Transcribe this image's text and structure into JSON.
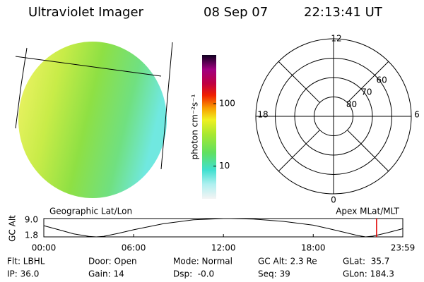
{
  "header": {
    "instrument": "Ultraviolet Imager",
    "date": "08 Sep 07",
    "time": "22:13:41 UT"
  },
  "colorbar": {
    "label": "photon cm⁻²s⁻¹",
    "scale": "log",
    "lim": [
      3,
      600
    ],
    "ticks": [
      10,
      100
    ]
  },
  "polar": {
    "lat_lim": [
      50,
      90
    ],
    "rings": [
      60,
      70,
      80
    ],
    "mlt_labels": [
      12,
      6,
      0,
      18
    ]
  },
  "altitude_panel": {
    "left_label": "Geographic Lat/Lon",
    "right_label": "Apex MLat/MLT",
    "ylabel": "GC Alt",
    "ylim": [
      1.8,
      9.0
    ],
    "yticks": [
      {
        "value": 9.0,
        "label": "9.0"
      },
      {
        "value": 1.8,
        "label": "1.8"
      }
    ],
    "xlim": [
      0,
      23.983
    ],
    "xticks": [
      {
        "value": 0,
        "label": "00:00"
      },
      {
        "value": 6,
        "label": "06:00"
      },
      {
        "value": 12,
        "label": "12:00"
      },
      {
        "value": 18,
        "label": "18:00"
      },
      {
        "value": 23.983,
        "label": "23:59"
      }
    ],
    "x": [
      0,
      1,
      2,
      3,
      3.5,
      4,
      5,
      6,
      8,
      10,
      12,
      12.5,
      14,
      16,
      18,
      19,
      20,
      21,
      21.5,
      22,
      23,
      23.983
    ],
    "values": [
      6.2,
      4.6,
      3.0,
      2.0,
      1.8,
      2.0,
      3.2,
      4.6,
      7.0,
      8.5,
      9.0,
      9.0,
      8.8,
      7.9,
      6.4,
      5.1,
      3.7,
      2.3,
      1.8,
      2.1,
      3.5,
      5.0
    ],
    "marker": 22.23,
    "marker_color": "#e00000"
  },
  "status": [
    [
      "Flt: LBHL",
      "Door: Open",
      "Mode: Normal",
      "GC Alt: 2.3 Re",
      "GLat:  35.7"
    ],
    [
      "IP: 36.0",
      "Gain: 14",
      "Dsp:  -0.0",
      "Seq: 39",
      "GLon: 184.3"
    ]
  ]
}
